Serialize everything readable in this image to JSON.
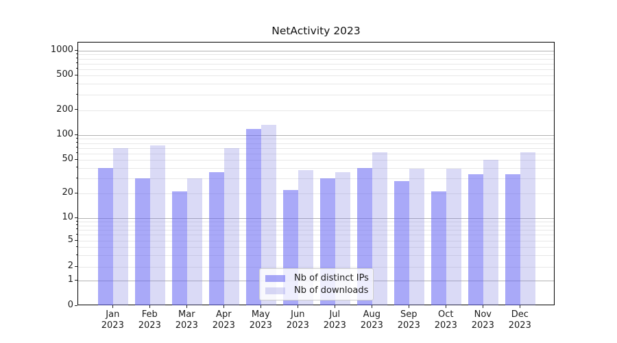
{
  "title": "NetActivity 2023",
  "chart_data": {
    "type": "bar",
    "title": "NetActivity 2023",
    "categories": [
      {
        "month": "Jan",
        "year": "2023"
      },
      {
        "month": "Feb",
        "year": "2023"
      },
      {
        "month": "Mar",
        "year": "2023"
      },
      {
        "month": "Apr",
        "year": "2023"
      },
      {
        "month": "May",
        "year": "2023"
      },
      {
        "month": "Jun",
        "year": "2023"
      },
      {
        "month": "Jul",
        "year": "2023"
      },
      {
        "month": "Aug",
        "year": "2023"
      },
      {
        "month": "Sep",
        "year": "2023"
      },
      {
        "month": "Oct",
        "year": "2023"
      },
      {
        "month": "Nov",
        "year": "2023"
      },
      {
        "month": "Dec",
        "year": "2023"
      }
    ],
    "series": [
      {
        "name": "Nb of distinct IPs",
        "color": "#a4a4f1",
        "fill_rgba": "rgba(99,99,242,0.55)",
        "values": [
          40,
          30,
          21,
          36,
          118,
          22,
          30,
          40,
          28,
          21,
          34,
          34
        ]
      },
      {
        "name": "Nb of downloads",
        "color": "#dadaf6",
        "fill_rgba": "rgba(133,133,226,0.30)",
        "values": [
          70,
          75,
          30,
          70,
          133,
          38,
          36,
          62,
          39,
          39,
          50,
          62
        ]
      }
    ],
    "xlabel": "",
    "ylabel": "",
    "yscale": "symlog",
    "ylim": [
      0,
      1200
    ],
    "yticks": [
      {
        "value": 0,
        "label": "0"
      },
      {
        "value": 1,
        "label": "1"
      },
      {
        "value": 2,
        "label": "2"
      },
      {
        "value": 5,
        "label": "5"
      },
      {
        "value": 10,
        "label": "10"
      },
      {
        "value": 20,
        "label": "20"
      },
      {
        "value": 50,
        "label": "50"
      },
      {
        "value": 100,
        "label": "100"
      },
      {
        "value": 200,
        "label": "200"
      },
      {
        "value": 500,
        "label": "500"
      },
      {
        "value": 1000,
        "label": "1000"
      }
    ],
    "grid": true,
    "legend_position": "lower center"
  }
}
